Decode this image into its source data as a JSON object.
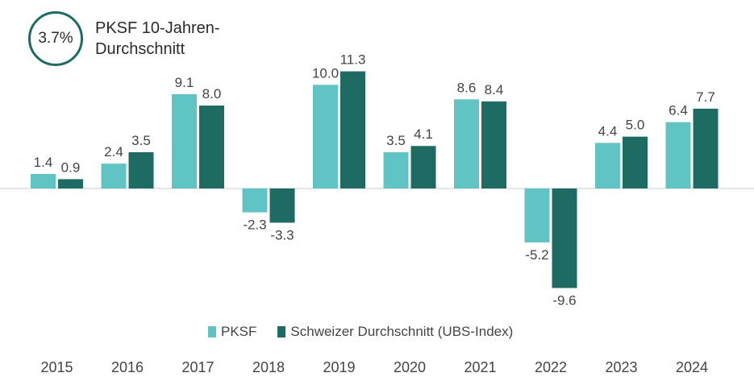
{
  "badge": {
    "value": "3.7%",
    "label": "PKSF 10-Jahren-Durchschnitt"
  },
  "colors": {
    "pksf": "#5fc4c3",
    "ubs": "#1e6b63",
    "axis": "#dddddd",
    "text": "#444444"
  },
  "chart_data": {
    "type": "bar",
    "categories": [
      "2015",
      "2016",
      "2017",
      "2018",
      "2019",
      "2020",
      "2021",
      "2022",
      "2023",
      "2024"
    ],
    "series": [
      {
        "name": "PKSF",
        "values": [
          1.4,
          2.4,
          9.1,
          -2.3,
          10.0,
          3.5,
          8.6,
          -5.2,
          4.4,
          6.4
        ]
      },
      {
        "name": "Schweizer Durchschnitt (UBS-Index)",
        "values": [
          0.9,
          3.5,
          8.0,
          -3.3,
          11.3,
          4.1,
          8.4,
          -9.6,
          5.0,
          7.7
        ]
      }
    ],
    "data_labels": [
      [
        "1.4",
        "2.4",
        "9.1",
        "-2.3",
        "10.0",
        "3.5",
        "8.6",
        "-5.2",
        "4.4",
        "6.4"
      ],
      [
        "0.9",
        "3.5",
        "8.0",
        "-3.3",
        "11.3",
        "4.1",
        "8.4",
        "-9.6",
        "5.0",
        "7.7"
      ]
    ],
    "title": "",
    "xlabel": "",
    "ylabel": "",
    "ylim": [
      -10,
      12
    ],
    "grid": false,
    "legend_position": "bottom"
  }
}
